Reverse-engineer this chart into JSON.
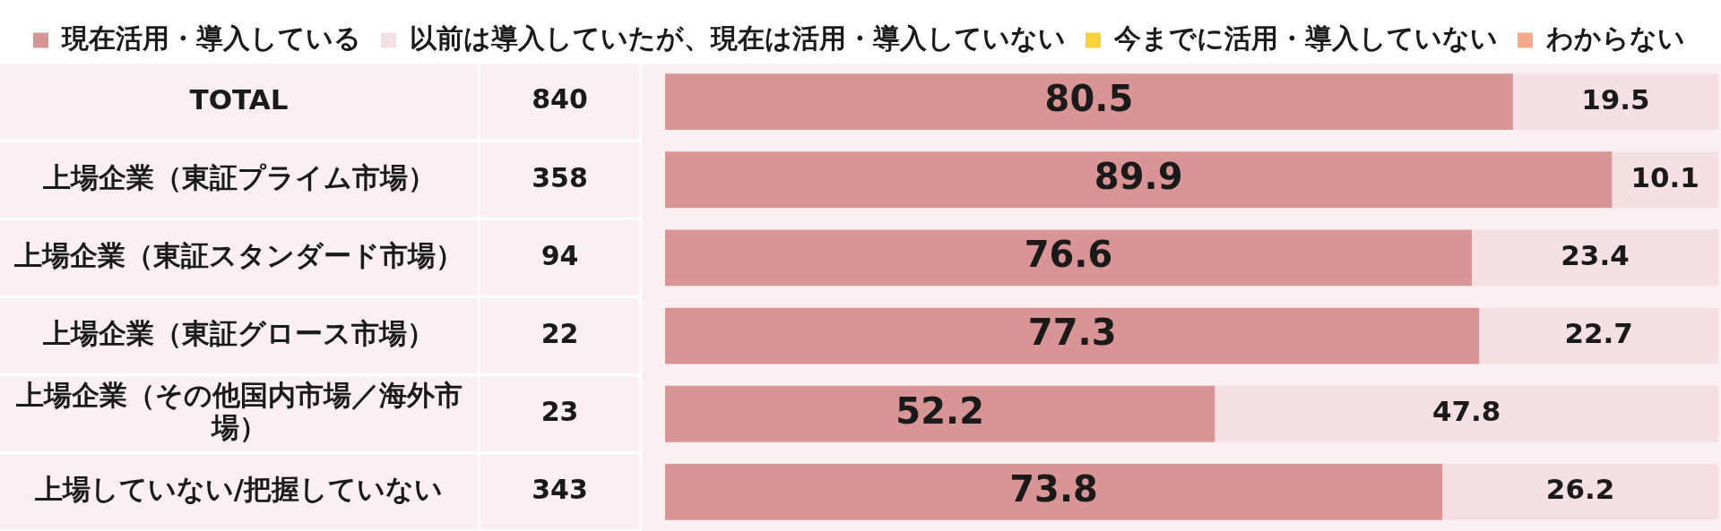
{
  "chart_data": {
    "type": "bar",
    "orientation": "horizontal",
    "stacked": true,
    "categories": [
      "TOTAL",
      "上場企業（東証プライム市場）",
      "上場企業（東証スタンダード市場）",
      "上場企業（東証グロース市場）",
      "上場企業（その他国内市場／海外市場）",
      "上場していない/把握していない"
    ],
    "y2_categories": [
      "840",
      "358",
      "94",
      "22",
      "23",
      "343"
    ],
    "series": [
      {
        "name": "現在活用・導入している",
        "color": "#d99595",
        "values": [
          80.5,
          89.9,
          76.6,
          77.3,
          52.2,
          73.8
        ]
      },
      {
        "name": "以前は導入していたが、現在は活用・導入していない",
        "color": "#f4e0e2",
        "values": [
          19.5,
          10.1,
          23.4,
          22.7,
          47.8,
          26.2
        ]
      },
      {
        "name": "今までに活用・導入していない",
        "color": "#f8d23c",
        "values": [
          null,
          null,
          null,
          null,
          null,
          null
        ]
      },
      {
        "name": "わからない",
        "color": "#f4a98a",
        "values": [
          null,
          null,
          null,
          null,
          null,
          null
        ]
      }
    ],
    "data_labels": true,
    "legend": "top",
    "tick_labels": "y"
  }
}
